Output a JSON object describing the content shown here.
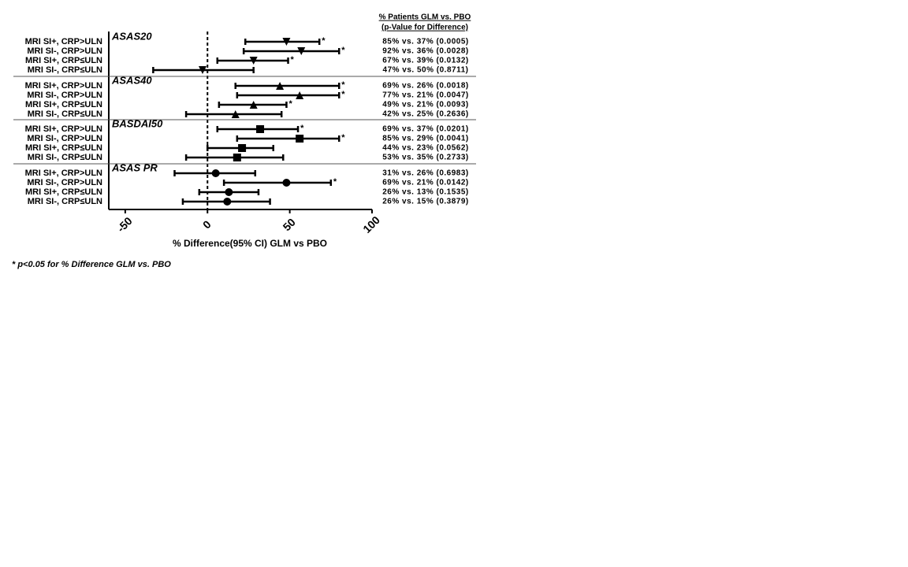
{
  "chart_data": {
    "type": "forest",
    "x_label": "% Difference(95% CI) GLM vs PBO",
    "xlim": [
      -60,
      100
    ],
    "xticks": [
      -50,
      0,
      50,
      100
    ],
    "reference": 0,
    "stats_header": [
      "% Patients GLM vs. PBO",
      "(p-Value for Difference)"
    ],
    "footnote": "* p<0.05 for % Difference GLM vs. PBO",
    "groups": [
      {
        "name": "ASAS20",
        "marker": "triangle-down",
        "rows": [
          {
            "label": "MRI SI+, CRP>ULN",
            "value": 48,
            "lo": 23,
            "hi": 68,
            "flag": "*",
            "stats": "85% vs. 37% (0.0005)"
          },
          {
            "label": "MRI SI-, CRP>ULN",
            "value": 57,
            "lo": 22,
            "hi": 80,
            "flag": "*",
            "stats": "92% vs. 36% (0.0028)"
          },
          {
            "label": "MRI SI+, CRP≤ULN",
            "value": 28,
            "lo": 6,
            "hi": 49,
            "flag": "*",
            "stats": "67% vs. 39% (0.0132)"
          },
          {
            "label": "MRI SI-, CRP≤ULN",
            "value": -3,
            "lo": -33,
            "hi": 28,
            "stats": "47% vs. 50% (0.8711)"
          }
        ]
      },
      {
        "name": "ASAS40",
        "marker": "triangle-up",
        "rows": [
          {
            "label": "MRI SI+, CRP>ULN",
            "value": 44,
            "lo": 17,
            "hi": 80,
            "flag": "*",
            "stats": "69% vs. 26% (0.0018)"
          },
          {
            "label": "MRI SI-, CRP>ULN",
            "value": 56,
            "lo": 18,
            "hi": 80,
            "flag": "*",
            "stats": "77% vs. 21% (0.0047)"
          },
          {
            "label": "MRI SI+, CRP≤ULN",
            "value": 28,
            "lo": 7,
            "hi": 48,
            "flag": "*",
            "stats": "49% vs. 21% (0.0093)"
          },
          {
            "label": "MRI SI-, CRP≤ULN",
            "value": 17,
            "lo": -13,
            "hi": 45,
            "stats": "42% vs. 25% (0.2636)"
          }
        ]
      },
      {
        "name": "BASDAI50",
        "marker": "square",
        "rows": [
          {
            "label": "MRI SI+, CRP>ULN",
            "value": 32,
            "lo": 6,
            "hi": 55,
            "flag": "*",
            "stats": "69% vs. 37% (0.0201)"
          },
          {
            "label": "MRI SI-, CRP>ULN",
            "value": 56,
            "lo": 18,
            "hi": 80,
            "flag": "*",
            "stats": "85% vs. 29% (0.0041)"
          },
          {
            "label": "MRI SI+, CRP≤ULN",
            "value": 21,
            "lo": 0,
            "hi": 40,
            "stats": "44% vs. 23% (0.0562)"
          },
          {
            "label": "MRI SI-, CRP≤ULN",
            "value": 18,
            "lo": -13,
            "hi": 46,
            "stats": "53% vs. 35% (0.2733)"
          }
        ]
      },
      {
        "name": "ASAS PR",
        "marker": "circle",
        "rows": [
          {
            "label": "MRI SI+, CRP>ULN",
            "value": 5,
            "lo": -20,
            "hi": 29,
            "stats": "31% vs. 26% (0.6983)"
          },
          {
            "label": "MRI SI-, CRP>ULN",
            "value": 48,
            "lo": 10,
            "hi": 75,
            "flag": "*",
            "stats": "69% vs. 21% (0.0142)"
          },
          {
            "label": "MRI SI+, CRP≤ULN",
            "value": 13,
            "lo": -5,
            "hi": 31,
            "stats": "26% vs. 13% (0.1535)"
          },
          {
            "label": "MRI SI-, CRP≤ULN",
            "value": 12,
            "lo": -15,
            "hi": 38,
            "stats": "26% vs. 15% (0.3879)"
          }
        ]
      }
    ]
  }
}
